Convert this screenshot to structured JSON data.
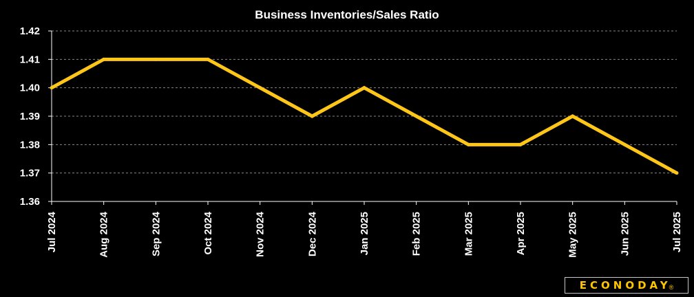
{
  "chart_data": {
    "type": "line",
    "title": "Business Inventories/Sales  Ratio",
    "xlabel": "",
    "ylabel": "",
    "categories": [
      "Jul 2024",
      "Aug 2024",
      "Sep 2024",
      "Oct 2024",
      "Nov 2024",
      "Dec 2024",
      "Jan 2025",
      "Feb 2025",
      "Mar 2025",
      "Apr 2025",
      "May 2025",
      "Jun 2025",
      "Jul 2025"
    ],
    "values": [
      1.4,
      1.41,
      1.41,
      1.41,
      1.4,
      1.39,
      1.4,
      1.39,
      1.38,
      1.38,
      1.39,
      1.38,
      1.37
    ],
    "ylim": [
      1.36,
      1.42
    ],
    "yticks": [
      "1.42",
      "1.41",
      "1.40",
      "1.39",
      "1.38",
      "1.37",
      "1.36"
    ],
    "grid": true,
    "legend": "none",
    "colors": {
      "background": "#000000",
      "line": "#ffc61a",
      "text": "#ffffff",
      "grid": "#8a8a8a"
    }
  },
  "logo": {
    "text": "ECONODAY",
    "mark": "®",
    "color": "#ffc600"
  }
}
